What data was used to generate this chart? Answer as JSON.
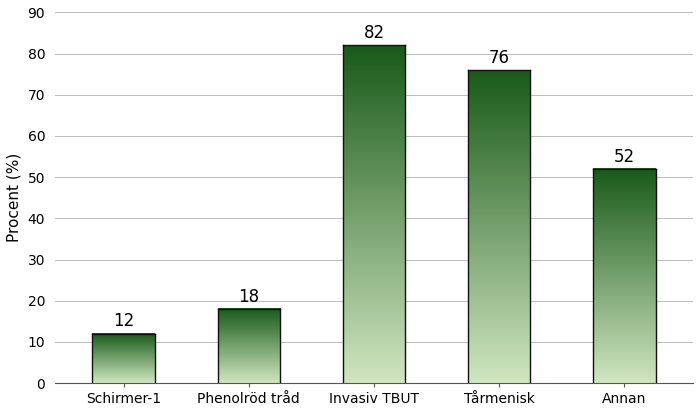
{
  "categories": [
    "Schirmer-1",
    "Phenolröd tråd",
    "Invasiv TBUT",
    "Tårmenisk",
    "Annan"
  ],
  "values": [
    12,
    18,
    82,
    76,
    52
  ],
  "color_light": [
    0.816,
    0.902,
    0.753
  ],
  "color_dark": [
    0.098,
    0.353,
    0.098
  ],
  "ylabel": "Procent (%)",
  "ylim": [
    0,
    90
  ],
  "yticks": [
    0,
    10,
    20,
    30,
    40,
    50,
    60,
    70,
    80,
    90
  ],
  "background_color": "#ffffff",
  "label_fontsize": 11,
  "tick_fontsize": 10,
  "value_fontsize": 12,
  "bar_width": 0.5,
  "border_color": "#111111",
  "grid_color": "#bbbbbb"
}
